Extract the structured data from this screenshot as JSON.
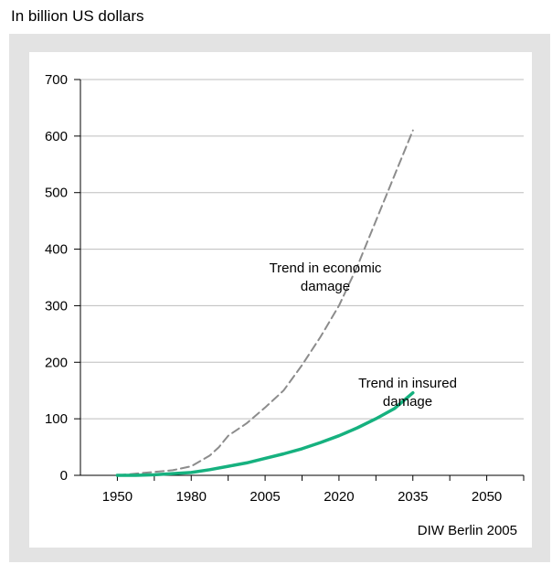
{
  "chart_data": {
    "type": "line",
    "title": "",
    "ylabel": "In billion US dollars",
    "xlabel": "",
    "x_ticks": [
      "1950",
      "1980",
      "2005",
      "2020",
      "2035",
      "2050"
    ],
    "y_ticks": [
      "0",
      "100",
      "200",
      "300",
      "400",
      "500",
      "600",
      "700"
    ],
    "ylim": [
      0,
      700
    ],
    "grid": "horizontal",
    "source": "DIW Berlin 2005",
    "annotations": [
      {
        "lines": [
          "Trend in economic",
          "damage"
        ],
        "series": "economic"
      },
      {
        "lines": [
          "Trend in insured",
          "damage"
        ],
        "series": "insured"
      }
    ],
    "series": [
      {
        "name": "Trend in economic damage",
        "style": "dashed",
        "color": "#8c8c8c",
        "points": [
          [
            0,
            0
          ],
          [
            0.5,
            3
          ],
          [
            1,
            6
          ],
          [
            1.5,
            9
          ],
          [
            2,
            16
          ],
          [
            2.5,
            35
          ],
          [
            2.75,
            50
          ],
          [
            3,
            70
          ],
          [
            3.5,
            92
          ],
          [
            4,
            120
          ],
          [
            4.5,
            150
          ],
          [
            5,
            195
          ],
          [
            5.5,
            245
          ],
          [
            6,
            300
          ],
          [
            6.5,
            370
          ],
          [
            7,
            450
          ],
          [
            7.5,
            530
          ],
          [
            8,
            610
          ]
        ]
      },
      {
        "name": "Trend in insured damage",
        "style": "solid",
        "color": "#16b17f",
        "points": [
          [
            0,
            0
          ],
          [
            0.5,
            0
          ],
          [
            1,
            1
          ],
          [
            1.5,
            3
          ],
          [
            2,
            5
          ],
          [
            2.5,
            10
          ],
          [
            3,
            16
          ],
          [
            3.5,
            22
          ],
          [
            4,
            30
          ],
          [
            4.5,
            38
          ],
          [
            5,
            47
          ],
          [
            5.5,
            58
          ],
          [
            6,
            70
          ],
          [
            6.5,
            84
          ],
          [
            7,
            100
          ],
          [
            7.5,
            118
          ],
          [
            8,
            146
          ]
        ]
      }
    ]
  }
}
